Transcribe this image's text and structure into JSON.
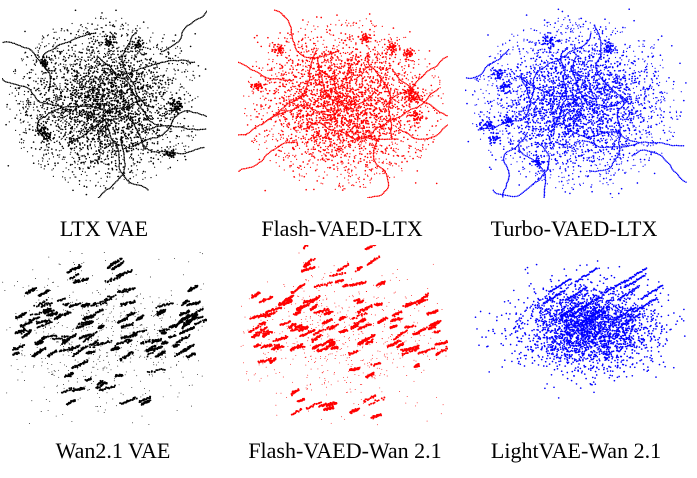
{
  "chart_data": [
    {
      "type": "scatter",
      "title": "LTX VAE",
      "color": "#000000",
      "shape": "diffuse-cloud",
      "extent": "wide",
      "point_count": "dense"
    },
    {
      "type": "scatter",
      "title": "Flash-VAED-LTX",
      "color": "#ff0000",
      "shape": "diffuse-cloud",
      "extent": "wide",
      "point_count": "dense"
    },
    {
      "type": "scatter",
      "title": "Turbo-VAED-LTX",
      "color": "#0000ff",
      "shape": "diffuse-cloud",
      "extent": "wide",
      "point_count": "dense"
    },
    {
      "type": "scatter",
      "title": "Wan2.1 VAE",
      "color": "#000000",
      "shape": "streaked-fragments",
      "extent": "wide",
      "point_count": "dense"
    },
    {
      "type": "scatter",
      "title": "Flash-VAED-Wan 2.1",
      "color": "#ff0000",
      "shape": "streaked-fragments",
      "extent": "wide",
      "point_count": "dense"
    },
    {
      "type": "scatter",
      "title": "LightVAE-Wan 2.1",
      "color": "#0000ff",
      "shape": "compact-cluster",
      "extent": "compact",
      "point_count": "dense"
    }
  ]
}
